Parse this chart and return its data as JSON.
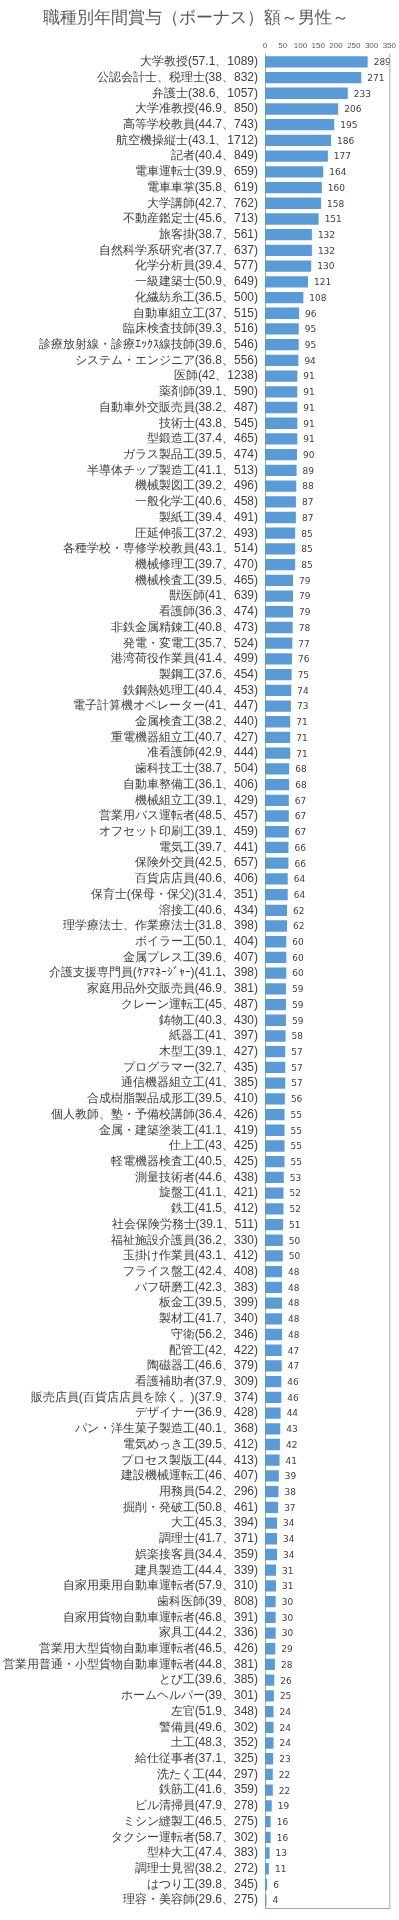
{
  "chart_data": {
    "type": "bar",
    "orientation": "horizontal",
    "title": "職種別年間賞与（ボーナス）額～男性～",
    "categories": [
      "大学教授(57.1、1089)",
      "公認会計士、税理士(38、832)",
      "弁護士(38.6、1057)",
      "大学准教授(46.9、850)",
      "高等学校教員(44.7、743)",
      "航空機操縦士(43.1、1712)",
      "記者(40.4、849)",
      "電車運転士(39.9、659)",
      "電車車掌(35.8、619)",
      "大学講師(42.7、762)",
      "不動産鑑定士(45.6、713)",
      "旅客掛(38.7、561)",
      "自然科学系研究者(37.7、637)",
      "化学分析員(39.4、577)",
      "一級建築士(50.9、649)",
      "化繊紡糸工(36.5、500)",
      "自動車組立工(37、515)",
      "臨床検査技師(39.3、516)",
      "診療放射線・診療ｴｯｸｽ線技師(39.6、546)",
      "システム・エンジニア(36.8、556)",
      "医師(42、1238)",
      "薬剤師(39.1、590)",
      "自動車外交販売員(38.2、487)",
      "技術士(43.8、545)",
      "型鍛造工(37.4、465)",
      "ガラス製品工(39.5、474)",
      "半導体チップ製造工(41.1、513)",
      "機械製図工(39.2、496)",
      "一般化学工(40.6、458)",
      "製紙工(39.4、491)",
      "圧延伸張工(37.2、493)",
      "各種学校・専修学校教員(43.1、514)",
      "機械修理工(39.7、470)",
      "機械検査工(39.5、465)",
      "獣医師(41、639)",
      "看護師(36.3、474)",
      "非鉄金属精錬工(40.8、473)",
      "発電・変電工(35.7、524)",
      "港湾荷役作業員(41.4、499)",
      "製鋼工(37.6、454)",
      "鉄鋼熱処理工(40.4、453)",
      "電子計算機オペレーター(41、447)",
      "金属検査工(38.2、440)",
      "重電機器組立工(40.7、427)",
      "准看護師(42.9、444)",
      "歯科技工士(38.7、504)",
      "自動車整備工(36.1、406)",
      "機械組立工(39.1、429)",
      "営業用バス運転者(48.5、457)",
      "オフセット印刷工(39.1、459)",
      "電気工(39.7、441)",
      "保険外交員(42.5、657)",
      "百貨店店員(40.6、406)",
      "保育士(保母・保父)(31.4、351)",
      "溶接工(40.6、434)",
      "理学療法士、作業療法士(31.8、398)",
      "ボイラー工(50.1、404)",
      "金属プレス工(39.6、407)",
      "介護支援専門員(ｹｱﾏﾈｰｼﾞｬｰ)(41.1、398)",
      "家庭用品外交販売員(46.9、381)",
      "クレーン運転工(45、487)",
      "鋳物工(40.3、430)",
      "紙器工(41、397)",
      "木型工(39.1、427)",
      "プログラマー(32.7、435)",
      "通信機器組立工(41、385)",
      "合成樹脂製品成形工(39.5、410)",
      "個人教師、塾・予備校講師(36.4、426)",
      "金属・建築塗装工(41.1、419)",
      "仕上工(43、425)",
      "軽電機器検査工(40.5、425)",
      "測量技術者(44.6、438)",
      "旋盤工(41.1、421)",
      "鉄工(41.5、412)",
      "社会保険労務士(39.1、511)",
      "福祉施設介護員(36.2、330)",
      "玉掛け作業員(43.1、412)",
      "フライス盤工(42.4、408)",
      "バフ研磨工(42.3、383)",
      "板金工(39.5、399)",
      "製材工(41.7、340)",
      "守衛(56.2、346)",
      "配管工(42、422)",
      "陶磁器工(46.6、379)",
      "看護補助者(37.9、309)",
      "販売店員(百貨店店員を除く。)(37.9、374)",
      "デザイナー(36.9、428)",
      "パン・洋生菓子製造工(40.1、368)",
      "電気めっき工(39.5、412)",
      "プロセス製版工(44、413)",
      "建設機械運転工(46、407)",
      "用務員(54.2、296)",
      "掘削・発破工(50.8、461)",
      "大工(45.3、394)",
      "調理士(41.7、371)",
      "娯楽接客員(34.4、359)",
      "建具製造工(44.4、339)",
      "自家用乗用自動車運転者(57.9、310)",
      "歯科医師(39、808)",
      "自家用貨物自動車運転者(46.8、391)",
      "家具工(44.2、336)",
      "営業用大型貨物自動車運転者(46.5、426)",
      "営業用普通・小型貨物自動車運転者(44.8、381)",
      "とび工(39.6、385)",
      "ホームヘルパー(39、301)",
      "左官(51.9、348)",
      "警備員(49.6、302)",
      "土工(48.3、352)",
      "給仕従事者(37.1、325)",
      "洗たく工(44、297)",
      "鉄筋工(41.6、359)",
      "ビル清掃員(47.9、278)",
      "ミシン縫製工(46.5、275)",
      "タクシー運転者(58.7、302)",
      "型枠大工(47.4、383)",
      "調理士見習(38.2、272)",
      "はつり工(39.8、345)",
      "理容・美容師(29.6、275)"
    ],
    "values": [
      289,
      271,
      233,
      206,
      195,
      186,
      177,
      164,
      160,
      158,
      151,
      132,
      132,
      130,
      121,
      108,
      96,
      95,
      95,
      94,
      91,
      91,
      91,
      91,
      91,
      90,
      89,
      88,
      87,
      87,
      85,
      85,
      85,
      79,
      79,
      79,
      78,
      77,
      76,
      75,
      74,
      73,
      71,
      71,
      71,
      68,
      68,
      67,
      67,
      67,
      66,
      66,
      64,
      64,
      62,
      62,
      60,
      60,
      60,
      59,
      59,
      59,
      58,
      57,
      57,
      57,
      56,
      55,
      55,
      55,
      55,
      53,
      52,
      52,
      51,
      50,
      50,
      48,
      48,
      48,
      48,
      48,
      47,
      47,
      46,
      46,
      44,
      43,
      42,
      41,
      39,
      38,
      37,
      34,
      34,
      34,
      31,
      31,
      30,
      30,
      30,
      29,
      28,
      26,
      25,
      24,
      24,
      24,
      23,
      22,
      22,
      19,
      16,
      16,
      13,
      11,
      6,
      4
    ],
    "color": "#5b9bd5",
    "xlim": [
      0,
      350
    ],
    "xticks": [
      0,
      50,
      100,
      150,
      200,
      250,
      300,
      350
    ],
    "grid": false,
    "legend": false,
    "data_labels": true
  }
}
